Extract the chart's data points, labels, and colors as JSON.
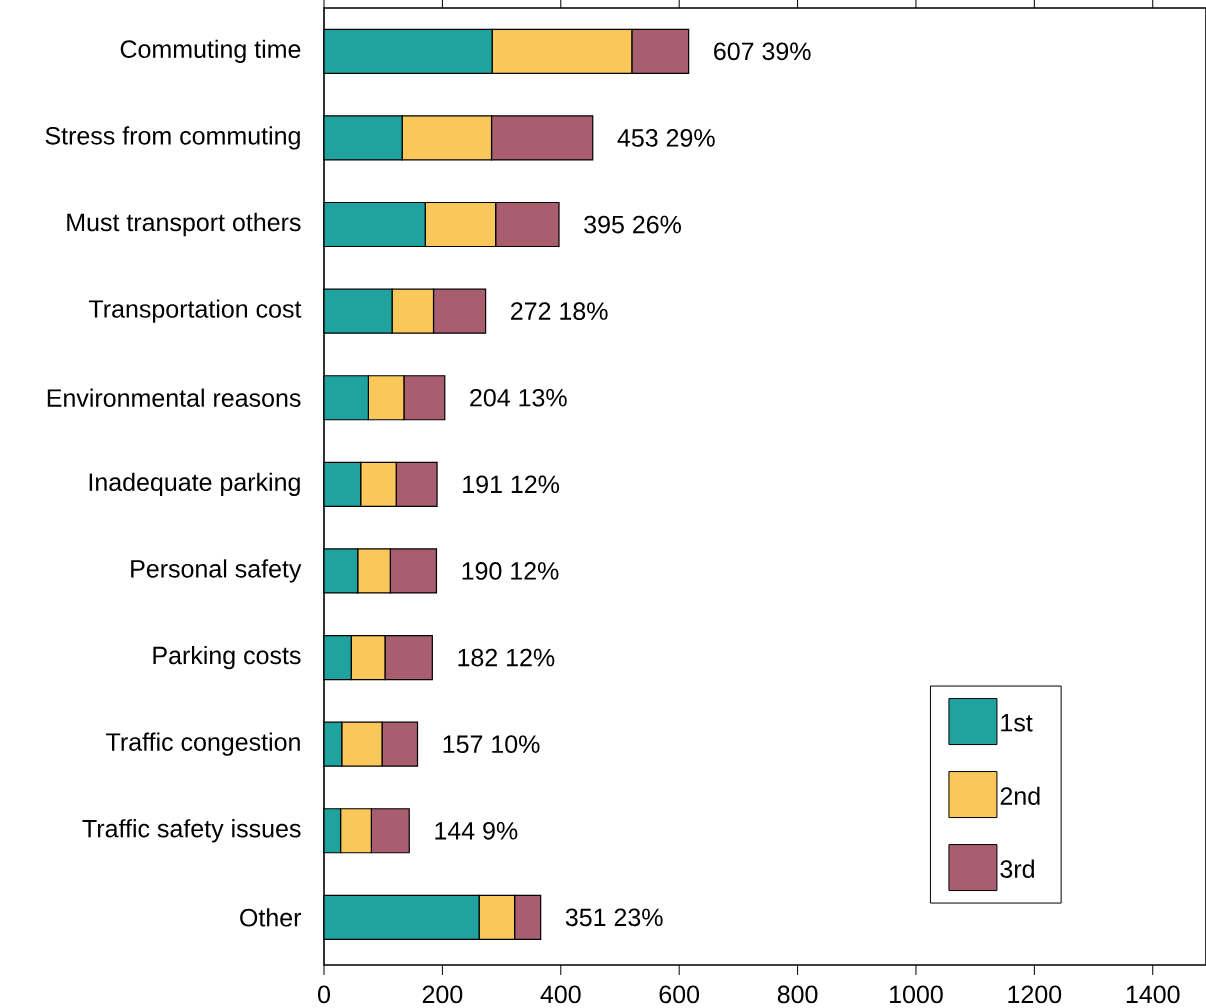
{
  "chart_data": {
    "type": "bar",
    "orientation": "horizontal",
    "stacked": true,
    "categories": [
      "Commuting time",
      "Stress from commuting",
      "Must transport others",
      "Transportation cost",
      "Environmental reasons",
      "Inadequate parking",
      "Personal safety",
      "Parking costs",
      "Traffic congestion",
      "Traffic safety issues",
      "Other"
    ],
    "series": [
      {
        "name": "1st",
        "color": "#20a39e",
        "values": [
          284,
          132,
          171,
          115,
          75,
          62,
          57,
          46,
          30,
          28,
          262
        ]
      },
      {
        "name": "2nd",
        "color": "#f9c75a",
        "values": [
          236,
          151,
          119,
          70,
          60,
          60,
          55,
          57,
          68,
          52,
          60
        ]
      },
      {
        "name": "3rd",
        "color": "#a85e6e",
        "values": [
          96,
          171,
          107,
          88,
          69,
          69,
          78,
          80,
          60,
          64,
          44
        ]
      }
    ],
    "totals": [
      "607 39%",
      "453 29%",
      "395 26%",
      "272 18%",
      "204 13%",
      "191 12%",
      "190 12%",
      "182 12%",
      "157 10%",
      "144 9%",
      "351 23%"
    ],
    "xlim": [
      0,
      1490
    ],
    "xticks": [
      0,
      200,
      400,
      600,
      800,
      1000,
      1200,
      1400
    ],
    "legend": "bottom right",
    "grid": false
  }
}
